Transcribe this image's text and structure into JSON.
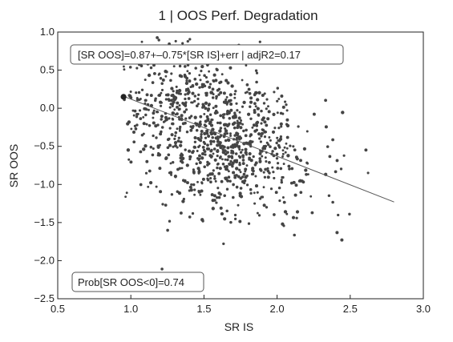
{
  "chart_data": {
    "type": "scatter",
    "title": "1 | OOS Perf. Degradation",
    "xlabel": "SR IS",
    "ylabel": "SR OOS",
    "xlim": [
      0.5,
      3.0
    ],
    "ylim": [
      -2.5,
      1.0
    ],
    "xticks": [
      0.5,
      1.0,
      1.5,
      2.0,
      2.5,
      3.0
    ],
    "xtick_labels": [
      "0.5",
      "1.0",
      "1.5",
      "2.0",
      "2.5",
      "3.0"
    ],
    "yticks": [
      1.0,
      0.5,
      0.0,
      -0.5,
      -1.0,
      -1.5,
      -2.0,
      -2.5
    ],
    "ytick_labels": [
      "1.0",
      "0.5",
      "0.0",
      "−0.5",
      "−1.0",
      "−1.5",
      "−2.0",
      "−2.5"
    ],
    "grid": false,
    "annotations": [
      "[SR OOS]=0.87+–0.75*[SR IS]+err | adjR2=0.17",
      "Prob[SR OOS<0]=0.74"
    ],
    "fit_line": {
      "intercept": 0.87,
      "slope": -0.75,
      "x_range": [
        0.95,
        2.8
      ]
    },
    "highlight_point": {
      "x": 0.95,
      "y": 0.15
    },
    "scatter_cloud": {
      "n": 1000,
      "x_mean": 1.6,
      "x_sd": 0.32,
      "x_min": 0.95,
      "x_max": 2.82,
      "residual_sd": 0.55,
      "y_min": -2.35,
      "y_max": 0.95
    },
    "colors": {
      "points": "#444444",
      "fit_line": "#555555",
      "axis": "#222222"
    }
  }
}
